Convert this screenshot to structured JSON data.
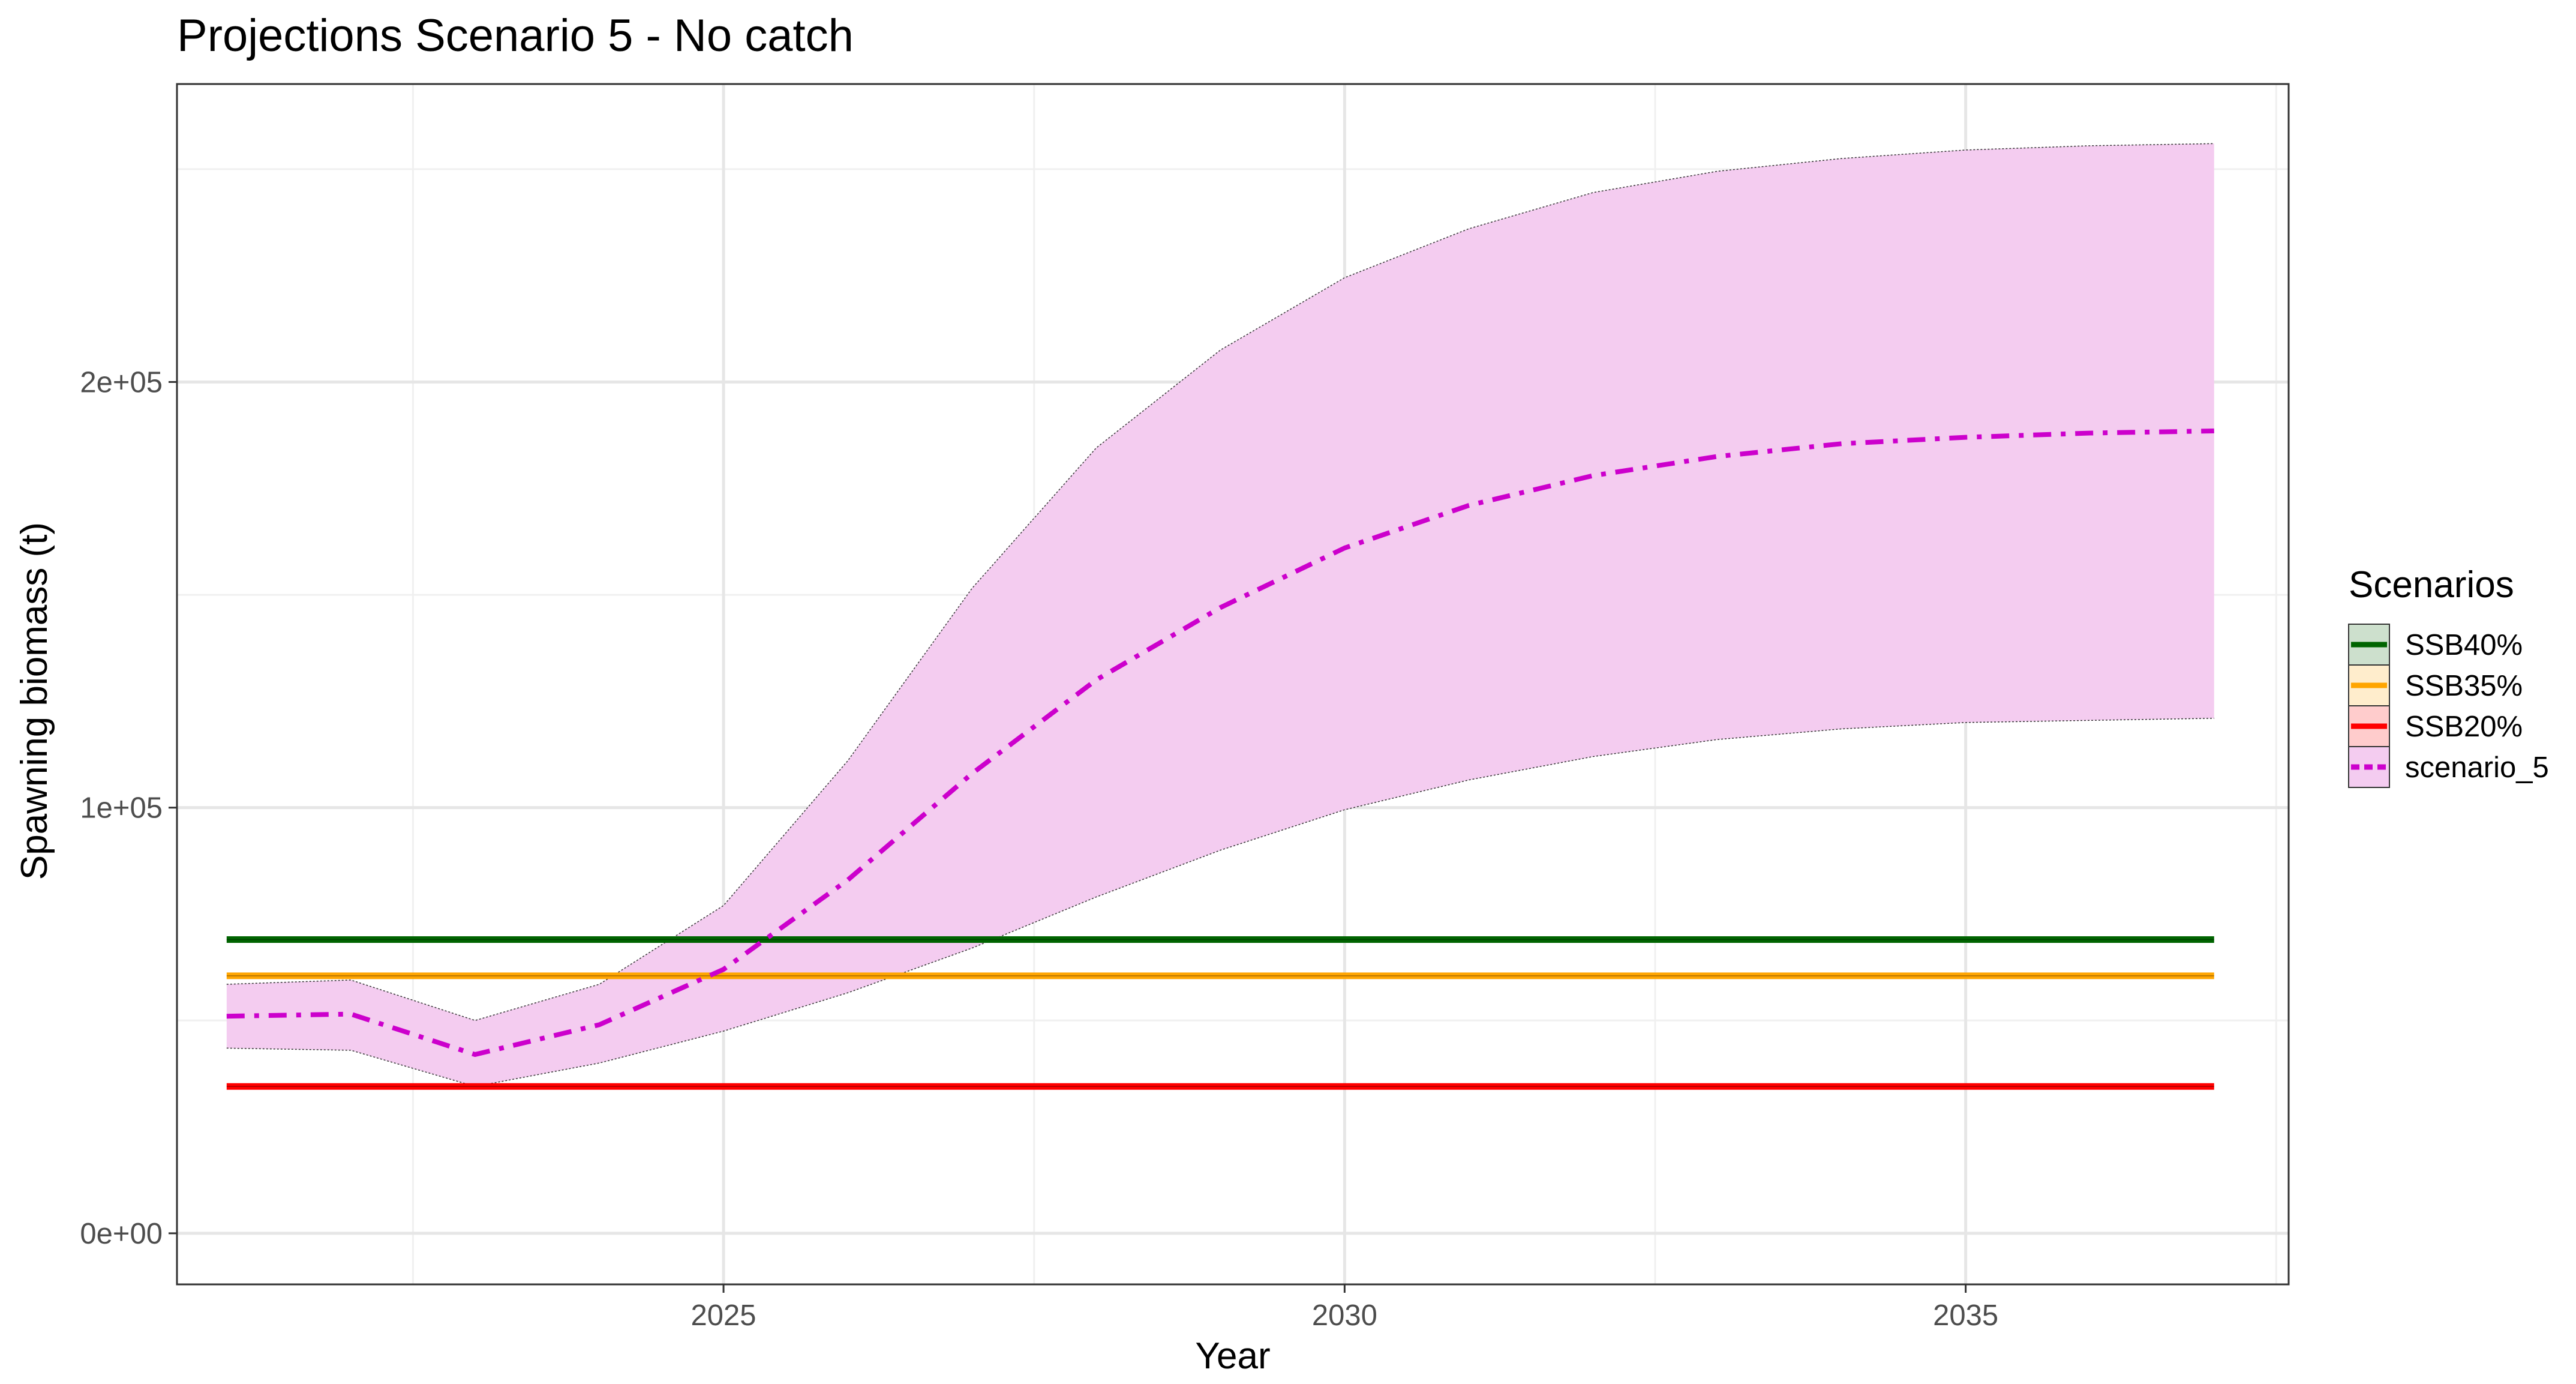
{
  "chart_data": {
    "type": "line",
    "title": "Projections Scenario 5 - No catch",
    "xlabel": "Year",
    "ylabel": "Spawning biomass (t)",
    "xlim": [
      2020.6,
      2037.6
    ],
    "ylim": [
      -12000,
      270000
    ],
    "x_ticks": [
      {
        "value": 2025,
        "label": "2025"
      },
      {
        "value": 2030,
        "label": "2030"
      },
      {
        "value": 2035,
        "label": "2035"
      }
    ],
    "y_ticks": [
      {
        "value": 0,
        "label": "0e+00"
      },
      {
        "value": 100000,
        "label": "1e+05"
      },
      {
        "value": 200000,
        "label": "2e+05"
      }
    ],
    "grid": true,
    "legend": {
      "title": "Scenarios",
      "placement": "right",
      "entries": [
        {
          "label": "SSB40%",
          "color": "#006400",
          "fill": "#cde0cd",
          "dash": "solid"
        },
        {
          "label": "SSB35%",
          "color": "#FFA500",
          "fill": "#ffedcc",
          "dash": "solid"
        },
        {
          "label": "SSB20%",
          "color": "#FF0000",
          "fill": "#ffcccc",
          "dash": "solid"
        },
        {
          "label": "scenario_5",
          "color": "#CC00CC",
          "fill": "#f4ccf0",
          "dash": "dashdot"
        }
      ]
    },
    "reference_lines": [
      {
        "name": "SSB40%",
        "value": 69000,
        "x_range": [
          2021,
          2037
        ],
        "color": "#006400"
      },
      {
        "name": "SSB35%",
        "value": 60500,
        "x_range": [
          2021,
          2037
        ],
        "color": "#FFA500"
      },
      {
        "name": "SSB20%",
        "value": 34500,
        "x_range": [
          2021,
          2037
        ],
        "color": "#FF0000"
      }
    ],
    "series": [
      {
        "name": "scenario_5",
        "color": "#CC00CC",
        "band_fill": "#f4ccf0",
        "x": [
          2021,
          2022,
          2023,
          2024,
          2025,
          2026,
          2027,
          2028,
          2029,
          2030,
          2031,
          2032,
          2033,
          2034,
          2035,
          2036,
          2037
        ],
        "values": [
          51000,
          51500,
          42000,
          49000,
          62000,
          83000,
          108000,
          130000,
          147000,
          161000,
          171000,
          178000,
          182500,
          185500,
          187000,
          188000,
          188500
        ],
        "lower": [
          43500,
          43000,
          34500,
          40000,
          47500,
          56500,
          67000,
          79000,
          90000,
          99500,
          106500,
          112000,
          116000,
          118500,
          120000,
          120500,
          121000
        ],
        "upper": [
          58500,
          59500,
          50000,
          58500,
          77000,
          111000,
          151500,
          184500,
          207500,
          224500,
          236000,
          244500,
          249500,
          252500,
          254500,
          255500,
          256000
        ]
      }
    ]
  }
}
